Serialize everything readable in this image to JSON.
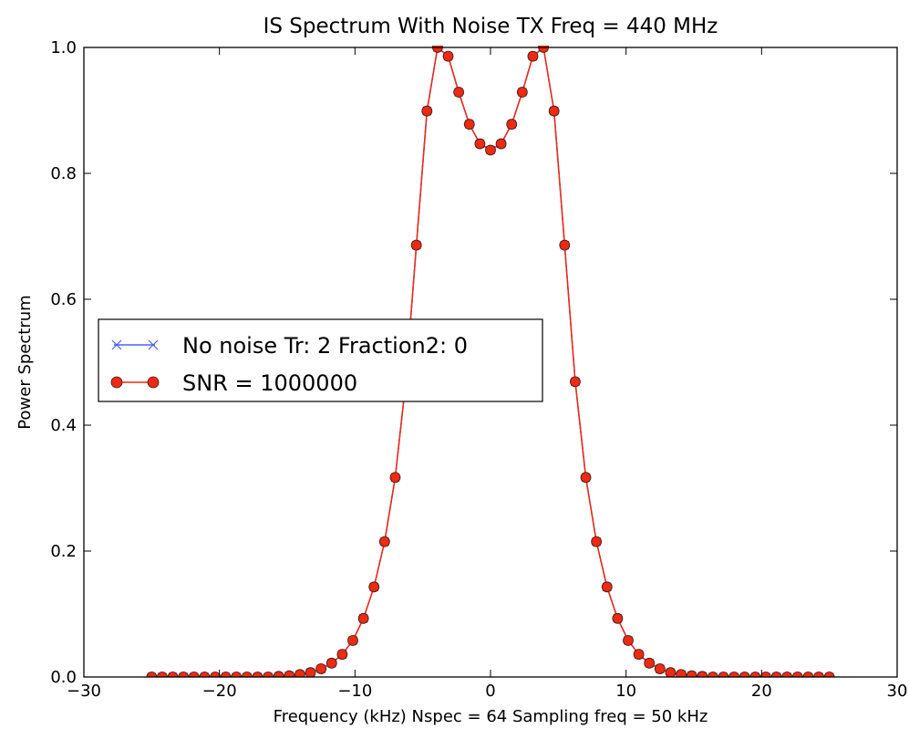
{
  "chart_data": {
    "type": "line",
    "title": "IS Spectrum With Noise  TX Freq = 440 MHz",
    "xlabel": "Frequency (kHz)  Nspec = 64  Sampling freq = 50 kHz",
    "ylabel": "Power Spectrum",
    "xlim": [
      -30,
      30
    ],
    "ylim": [
      0.0,
      1.0
    ],
    "xticks": [
      -30,
      -20,
      -10,
      0,
      10,
      20,
      30
    ],
    "xtick_labels": [
      "−30",
      "−20",
      "−10",
      "0",
      "10",
      "20",
      "30"
    ],
    "yticks": [
      0.0,
      0.2,
      0.4,
      0.6,
      0.8,
      1.0
    ],
    "ytick_labels": [
      "0.0",
      "0.2",
      "0.4",
      "0.6",
      "0.8",
      "1.0"
    ],
    "grid": false,
    "legend": {
      "placement": "center-left"
    },
    "x": [
      -25.0,
      -24.21875,
      -23.4375,
      -22.65625,
      -21.875,
      -21.09375,
      -20.3125,
      -19.53125,
      -18.75,
      -17.96875,
      -17.1875,
      -16.40625,
      -15.625,
      -14.84375,
      -14.0625,
      -13.28125,
      -12.5,
      -11.71875,
      -10.9375,
      -10.15625,
      -9.375,
      -8.59375,
      -7.8125,
      -7.03125,
      -6.25,
      -5.46875,
      -4.6875,
      -3.90625,
      -3.125,
      -2.34375,
      -1.5625,
      -0.78125,
      0.0,
      0.78125,
      1.5625,
      2.34375,
      3.125,
      3.90625,
      4.6875,
      5.46875,
      6.25,
      7.03125,
      7.8125,
      8.59375,
      9.375,
      10.15625,
      10.9375,
      11.71875,
      12.5,
      13.28125,
      14.0625,
      14.84375,
      15.625,
      16.40625,
      17.1875,
      17.96875,
      18.75,
      19.53125,
      20.3125,
      21.09375,
      21.875,
      22.65625,
      23.4375,
      24.21875,
      25.0
    ],
    "series": [
      {
        "name": "No noise Tr: 2  Fraction2: 0",
        "color": "#4b63f5",
        "marker": "x",
        "values": [
          0.0,
          0.0,
          0.0,
          0.0,
          0.0,
          0.0,
          0.0,
          0.0,
          0.0,
          0.0,
          0.0,
          0.0,
          0.001,
          0.002,
          0.004,
          0.007,
          0.013,
          0.022,
          0.036,
          0.058,
          0.093,
          0.143,
          0.215,
          0.317,
          0.469,
          0.686,
          0.899,
          1.0,
          0.986,
          0.929,
          0.878,
          0.847,
          0.837,
          0.847,
          0.878,
          0.929,
          0.986,
          1.0,
          0.899,
          0.686,
          0.469,
          0.317,
          0.215,
          0.143,
          0.093,
          0.058,
          0.036,
          0.022,
          0.013,
          0.007,
          0.004,
          0.002,
          0.001,
          0.0,
          0.0,
          0.0,
          0.0,
          0.0,
          0.0,
          0.0,
          0.0,
          0.0,
          0.0,
          0.0,
          0.0
        ]
      },
      {
        "name": "SNR = 1000000",
        "color": "#ee2a12",
        "marker": "o",
        "values": [
          0.0,
          0.0,
          0.0,
          0.0,
          0.0,
          0.0,
          0.0,
          0.0,
          0.0,
          0.0,
          0.0,
          0.0,
          0.001,
          0.002,
          0.004,
          0.007,
          0.013,
          0.022,
          0.036,
          0.058,
          0.093,
          0.143,
          0.215,
          0.317,
          0.469,
          0.686,
          0.899,
          1.0,
          0.986,
          0.929,
          0.878,
          0.847,
          0.837,
          0.847,
          0.878,
          0.929,
          0.986,
          1.0,
          0.899,
          0.686,
          0.469,
          0.317,
          0.215,
          0.143,
          0.093,
          0.058,
          0.036,
          0.022,
          0.013,
          0.007,
          0.004,
          0.002,
          0.001,
          0.0,
          0.0,
          0.0,
          0.0,
          0.0,
          0.0,
          0.0,
          0.0,
          0.0,
          0.0,
          0.0,
          0.0
        ]
      }
    ]
  }
}
